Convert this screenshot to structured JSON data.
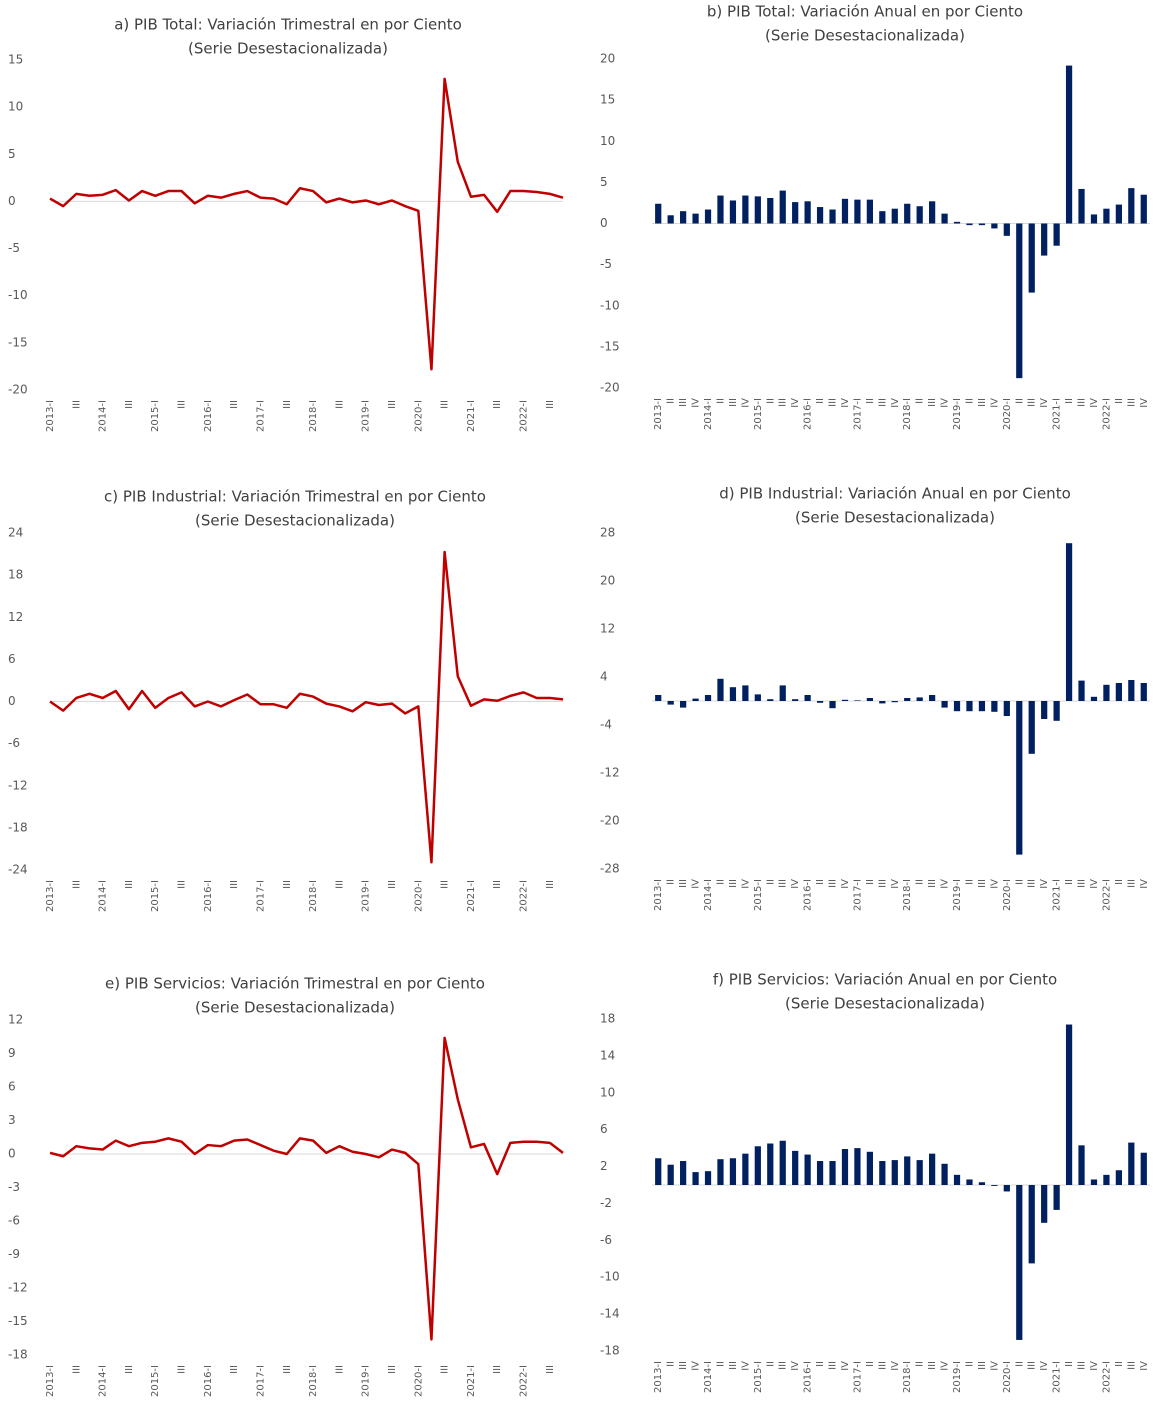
{
  "chart_data": [
    {
      "type": "line",
      "title": "a) PIB Total: Variación Trimestral en por Ciento",
      "subtitle": "(Serie Desestacionalizada)",
      "color": "#c00000",
      "categories": [
        "2013-I",
        null,
        "III",
        null,
        "2014-I",
        null,
        "III",
        null,
        "2015-I",
        null,
        "III",
        null,
        "2016-I",
        null,
        "III",
        null,
        "2017-I",
        null,
        "III",
        null,
        "2018-I",
        null,
        "III",
        null,
        "2019-I",
        null,
        "III",
        null,
        "2020-I",
        null,
        "III",
        null,
        "2021-I",
        null,
        "III",
        null,
        "2022-I",
        null,
        "III",
        null
      ],
      "values": [
        0.3,
        -0.5,
        0.8,
        0.6,
        0.7,
        1.2,
        0.1,
        1.1,
        0.6,
        1.1,
        1.1,
        -0.2,
        0.6,
        0.4,
        0.8,
        1.1,
        0.4,
        0.3,
        -0.3,
        1.4,
        1.1,
        -0.1,
        0.3,
        -0.1,
        0.1,
        -0.3,
        0.1,
        -0.5,
        -1.0,
        -17.8,
        13.0,
        4.2,
        0.5,
        0.7,
        -1.1,
        1.1,
        1.1,
        1.0,
        0.8,
        0.4
      ],
      "ylim": [
        -20,
        15
      ],
      "yticks": [
        -20,
        -15,
        -10,
        -5,
        0,
        5,
        10,
        15
      ]
    },
    {
      "type": "bar",
      "title": "b) PIB Total: Variación Anual en por Ciento",
      "subtitle": "(Serie Desestacionalizada)",
      "color": "#002060",
      "categories": [
        "2013-I",
        "II",
        "III",
        "IV",
        "2014-I",
        "II",
        "III",
        "IV",
        "2015-I",
        "II",
        "III",
        "IV",
        "2016-I",
        "II",
        "III",
        "IV",
        "2017-I",
        "II",
        "III",
        "IV",
        "2018-I",
        "II",
        "III",
        "IV",
        "2019-I",
        "II",
        "III",
        "IV",
        "2020-I",
        "II",
        "III",
        "IV",
        "2021-I",
        "II",
        "III",
        "IV",
        "2022-I",
        "II",
        "III",
        "IV"
      ],
      "values": [
        2.4,
        1.0,
        1.5,
        1.2,
        1.7,
        3.4,
        2.8,
        3.4,
        3.3,
        3.1,
        4.0,
        2.6,
        2.7,
        2.0,
        1.7,
        3.0,
        2.9,
        2.9,
        1.5,
        1.8,
        2.4,
        2.1,
        2.7,
        1.2,
        0.2,
        -0.2,
        -0.2,
        -0.6,
        -1.5,
        -18.8,
        -8.4,
        -3.9,
        -2.7,
        19.2,
        4.2,
        1.1,
        1.8,
        2.3,
        4.3,
        3.5
      ],
      "ylim": [
        -20,
        20
      ],
      "yticks": [
        -20,
        -15,
        -10,
        -5,
        0,
        5,
        10,
        15,
        20
      ]
    },
    {
      "type": "line",
      "title": "c) PIB Industrial: Variación Trimestral en por Ciento",
      "subtitle": "(Serie Desestacionalizada)",
      "color": "#c00000",
      "categories": [
        "2013-I",
        null,
        "III",
        null,
        "2014-I",
        null,
        "III",
        null,
        "2015-I",
        null,
        "III",
        null,
        "2016-I",
        null,
        "III",
        null,
        "2017-I",
        null,
        "III",
        null,
        "2018-I",
        null,
        "III",
        null,
        "2019-I",
        null,
        "III",
        null,
        "2020-I",
        null,
        "III",
        null,
        "2021-I",
        null,
        "III",
        null,
        "2022-I",
        null,
        "III",
        null
      ],
      "values": [
        0.0,
        -1.3,
        0.5,
        1.1,
        0.5,
        1.5,
        -1.1,
        1.5,
        -0.9,
        0.5,
        1.3,
        -0.7,
        0.0,
        -0.7,
        0.2,
        1.0,
        -0.4,
        -0.4,
        -0.9,
        1.1,
        0.7,
        -0.3,
        -0.7,
        -1.4,
        -0.1,
        -0.5,
        -0.3,
        -1.7,
        -0.7,
        -22.9,
        21.3,
        3.6,
        -0.6,
        0.3,
        0.1,
        0.8,
        1.3,
        0.5,
        0.5,
        0.3
      ],
      "ylim": [
        -24,
        24
      ],
      "yticks": [
        -24,
        -18,
        -12,
        -6,
        0,
        6,
        12,
        18,
        24
      ]
    },
    {
      "type": "bar",
      "title": "d) PIB Industrial: Variación Anual en por Ciento",
      "subtitle": "(Serie Desestacionalizada)",
      "color": "#002060",
      "categories": [
        "2013-I",
        "II",
        "III",
        "IV",
        "2014-I",
        "II",
        "III",
        "IV",
        "2015-I",
        "II",
        "III",
        "IV",
        "2016-I",
        "II",
        "III",
        "IV",
        "2017-I",
        "II",
        "III",
        "IV",
        "2018-I",
        "II",
        "III",
        "IV",
        "2019-I",
        "II",
        "III",
        "IV",
        "2020-I",
        "II",
        "III",
        "IV",
        "2021-I",
        "II",
        "III",
        "IV",
        "2022-I",
        "II",
        "III",
        "IV"
      ],
      "values": [
        1.0,
        -0.6,
        -1.1,
        0.4,
        1.0,
        3.7,
        2.3,
        2.6,
        1.1,
        0.3,
        2.6,
        0.3,
        1.0,
        -0.3,
        -1.2,
        0.2,
        0.1,
        0.5,
        -0.4,
        -0.2,
        0.5,
        0.6,
        1.0,
        -1.1,
        -1.7,
        -1.7,
        -1.7,
        -1.8,
        -2.5,
        -25.6,
        -8.8,
        -3.0,
        -3.3,
        26.3,
        3.4,
        0.7,
        2.7,
        3.0,
        3.5,
        3.0
      ],
      "ylim": [
        -28,
        28
      ],
      "yticks": [
        -28,
        -20,
        -12,
        -4,
        4,
        12,
        20,
        28
      ]
    },
    {
      "type": "line",
      "title": "e) PIB Servicios: Variación Trimestral en por Ciento",
      "subtitle": "(Serie Desestacionalizada)",
      "color": "#c00000",
      "categories": [
        "2013-I",
        null,
        "III",
        null,
        "2014-I",
        null,
        "III",
        null,
        "2015-I",
        null,
        "III",
        null,
        "2016-I",
        null,
        "III",
        null,
        "2017-I",
        null,
        "III",
        null,
        "2018-I",
        null,
        "III",
        null,
        "2019-I",
        null,
        "III",
        null,
        "2020-I",
        null,
        "III",
        null,
        "2021-I",
        null,
        "III",
        null,
        "2022-I",
        null,
        "III",
        null
      ],
      "values": [
        0.1,
        -0.2,
        0.7,
        0.5,
        0.4,
        1.2,
        0.7,
        1.0,
        1.1,
        1.4,
        1.1,
        0.0,
        0.8,
        0.7,
        1.2,
        1.3,
        0.8,
        0.3,
        0.0,
        1.4,
        1.2,
        0.1,
        0.7,
        0.2,
        0.0,
        -0.3,
        0.4,
        0.1,
        -0.9,
        -16.6,
        10.4,
        4.9,
        0.6,
        0.9,
        -1.8,
        1.0,
        1.1,
        1.1,
        1.0,
        0.1
      ],
      "ylim": [
        -18,
        12
      ],
      "yticks": [
        -18,
        -15,
        -12,
        -9,
        -6,
        -3,
        0,
        3,
        6,
        9,
        12
      ]
    },
    {
      "type": "bar",
      "title": "f) PIB Servicios: Variación Anual en por Ciento",
      "subtitle": "(Serie Desestacionalizada)",
      "color": "#002060",
      "categories": [
        "2013-I",
        "II",
        "III",
        "IV",
        "2014-I",
        "II",
        "III",
        "IV",
        "2015-I",
        "II",
        "III",
        "IV",
        "2016-I",
        "II",
        "III",
        "IV",
        "2017-I",
        "II",
        "III",
        "IV",
        "2018-I",
        "II",
        "III",
        "IV",
        "2019-I",
        "II",
        "III",
        "IV",
        "2020-I",
        "II",
        "III",
        "IV",
        "2021-I",
        "II",
        "III",
        "IV",
        "2022-I",
        "II",
        "III",
        "IV"
      ],
      "values": [
        2.9,
        2.2,
        2.6,
        1.4,
        1.5,
        2.8,
        2.9,
        3.4,
        4.2,
        4.5,
        4.8,
        3.7,
        3.3,
        2.6,
        2.6,
        3.9,
        4.0,
        3.6,
        2.6,
        2.7,
        3.1,
        2.7,
        3.4,
        2.3,
        1.1,
        0.6,
        0.3,
        -0.1,
        -0.7,
        -16.8,
        -8.5,
        -4.1,
        -2.7,
        17.4,
        4.3,
        0.6,
        1.1,
        1.6,
        4.6,
        3.5
      ],
      "ylim": [
        -18,
        18
      ],
      "yticks": [
        -18,
        -14,
        -10,
        -6,
        -2,
        2,
        6,
        10,
        14,
        18
      ]
    }
  ]
}
